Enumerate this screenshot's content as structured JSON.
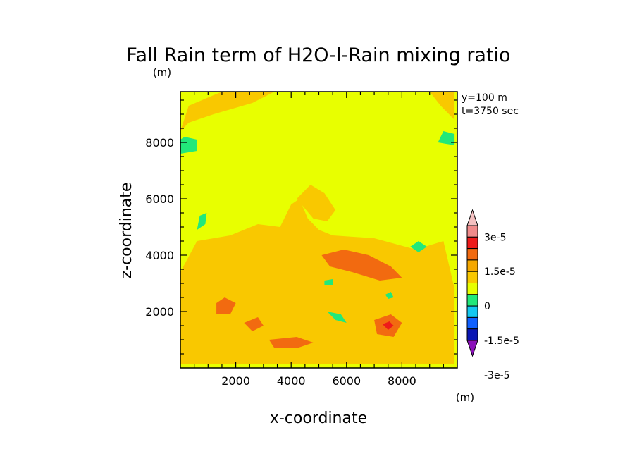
{
  "chart_data": {
    "type": "heatmap",
    "title": "Fall Rain term of H2O-l-Rain mixing ratio",
    "title_units": "(m)",
    "xlabel": "x-coordinate",
    "ylabel": "z-coordinate",
    "annotations": [
      "y=100 m",
      "t=3750 sec"
    ],
    "xlim": [
      0,
      10000
    ],
    "ylim": [
      0,
      9800
    ],
    "x_ticks": [
      2000,
      4000,
      6000,
      8000
    ],
    "x_tick_labels": [
      "2000",
      "4000",
      "6000",
      "8000"
    ],
    "y_ticks": [
      2000,
      4000,
      6000,
      8000
    ],
    "y_tick_labels": [
      "2000",
      "4000",
      "6000",
      "8000"
    ],
    "background_level_color": "#e8ff00",
    "colorbar": {
      "units": "(m)",
      "labels": [
        "3e-5",
        "1.5e-5",
        "0",
        "-1.5e-5",
        "-3e-5"
      ],
      "colors_top_to_bottom": [
        "#f4c0c0",
        "#f08a8a",
        "#ee1a1a",
        "#f26a10",
        "#f5a800",
        "#f9c800",
        "#e8ff00",
        "#22e87a",
        "#14c8f0",
        "#1060ff",
        "#0a16b4",
        "#8a10b8"
      ]
    },
    "regions": [
      {
        "level": "#f9c800",
        "points": [
          [
            0,
            150
          ],
          [
            2500,
            150
          ],
          [
            4000,
            150
          ],
          [
            7000,
            150
          ],
          [
            9900,
            150
          ],
          [
            9900,
            2800
          ],
          [
            9500,
            4500
          ],
          [
            8500,
            4200
          ],
          [
            7000,
            4600
          ],
          [
            5500,
            4700
          ],
          [
            5000,
            4900
          ],
          [
            4600,
            5300
          ],
          [
            4300,
            6000
          ],
          [
            4000,
            5800
          ],
          [
            3600,
            5000
          ],
          [
            2800,
            5100
          ],
          [
            1800,
            4700
          ],
          [
            600,
            4500
          ],
          [
            0,
            3400
          ]
        ]
      },
      {
        "level": "#f9c800",
        "points": [
          [
            0,
            8400
          ],
          [
            300,
            9300
          ],
          [
            1500,
            9800
          ],
          [
            3400,
            9800
          ],
          [
            2600,
            9400
          ],
          [
            1200,
            9000
          ],
          [
            300,
            8700
          ]
        ]
      },
      {
        "level": "#f9c800",
        "points": [
          [
            9000,
            9800
          ],
          [
            9900,
            9800
          ],
          [
            9900,
            8800
          ],
          [
            9400,
            9300
          ]
        ]
      },
      {
        "level": "#f9c800",
        "points": [
          [
            4200,
            6000
          ],
          [
            4700,
            6500
          ],
          [
            5200,
            6200
          ],
          [
            5600,
            5600
          ],
          [
            5300,
            5200
          ],
          [
            4800,
            5300
          ]
        ]
      },
      {
        "level": "#f26a10",
        "points": [
          [
            5100,
            4000
          ],
          [
            5900,
            4200
          ],
          [
            6800,
            4000
          ],
          [
            7600,
            3600
          ],
          [
            8000,
            3200
          ],
          [
            7200,
            3100
          ],
          [
            6200,
            3400
          ],
          [
            5400,
            3600
          ]
        ]
      },
      {
        "level": "#f26a10",
        "points": [
          [
            1300,
            2300
          ],
          [
            1600,
            2500
          ],
          [
            2000,
            2300
          ],
          [
            1800,
            1900
          ],
          [
            1300,
            1900
          ]
        ]
      },
      {
        "level": "#f26a10",
        "points": [
          [
            3200,
            1000
          ],
          [
            4200,
            1100
          ],
          [
            4800,
            900
          ],
          [
            4200,
            700
          ],
          [
            3400,
            700
          ]
        ]
      },
      {
        "level": "#f26a10",
        "points": [
          [
            7000,
            1700
          ],
          [
            7600,
            1900
          ],
          [
            8000,
            1600
          ],
          [
            7700,
            1100
          ],
          [
            7100,
            1200
          ]
        ]
      },
      {
        "level": "#f26a10",
        "points": [
          [
            2300,
            1600
          ],
          [
            2800,
            1800
          ],
          [
            3000,
            1500
          ],
          [
            2600,
            1300
          ]
        ]
      },
      {
        "level": "#ee1a1a",
        "points": [
          [
            7300,
            1550
          ],
          [
            7550,
            1650
          ],
          [
            7700,
            1500
          ],
          [
            7500,
            1350
          ]
        ]
      },
      {
        "level": "#22e87a",
        "points": [
          [
            0,
            7600
          ],
          [
            600,
            7700
          ],
          [
            600,
            8100
          ],
          [
            150,
            8200
          ],
          [
            0,
            8100
          ]
        ]
      },
      {
        "level": "#22e87a",
        "points": [
          [
            9300,
            8000
          ],
          [
            9900,
            7900
          ],
          [
            9900,
            8300
          ],
          [
            9500,
            8400
          ]
        ]
      },
      {
        "level": "#22e87a",
        "points": [
          [
            600,
            4900
          ],
          [
            900,
            5100
          ],
          [
            950,
            5500
          ],
          [
            700,
            5400
          ]
        ]
      },
      {
        "level": "#22e87a",
        "points": [
          [
            8300,
            4300
          ],
          [
            8600,
            4500
          ],
          [
            8900,
            4300
          ],
          [
            8600,
            4100
          ]
        ]
      },
      {
        "level": "#22e87a",
        "points": [
          [
            5300,
            2000
          ],
          [
            5800,
            1900
          ],
          [
            6000,
            1600
          ],
          [
            5600,
            1700
          ]
        ]
      },
      {
        "level": "#22e87a",
        "points": [
          [
            5200,
            3100
          ],
          [
            5500,
            3150
          ],
          [
            5500,
            2950
          ],
          [
            5200,
            2950
          ]
        ]
      },
      {
        "level": "#22e87a",
        "points": [
          [
            7400,
            2600
          ],
          [
            7600,
            2700
          ],
          [
            7700,
            2500
          ],
          [
            7500,
            2450
          ]
        ]
      }
    ]
  }
}
